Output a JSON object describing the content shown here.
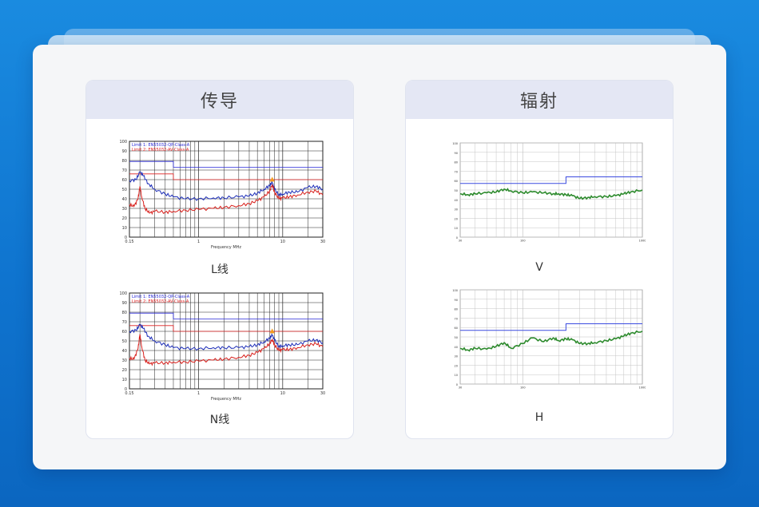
{
  "panels": {
    "conducted": {
      "title": "传导"
    },
    "radiated": {
      "title": "辐射"
    }
  },
  "captions": {
    "L": "L线",
    "N": "N线",
    "V": "V",
    "H": "H"
  },
  "colors": {
    "limit_qp": "#2a2ad8",
    "limit_av": "#e02020",
    "trace_qp": "#1c2db8",
    "trace_av": "#d8201c",
    "radiated_limit": "#3b4be0",
    "radiated_trace": "#2e8b2e",
    "marker": "#f59b1c"
  },
  "chart_data": [
    {
      "id": "L",
      "type": "line",
      "xscale": "log",
      "xlim": [
        0.15,
        30
      ],
      "ylim": [
        0,
        100
      ],
      "yticks": [
        0,
        10,
        20,
        30,
        40,
        50,
        60,
        70,
        80,
        90,
        100
      ],
      "xticks": [
        0.15,
        1,
        10,
        30
      ],
      "xlabel": "Frequency MHz",
      "legend": [
        "Limit 1: EN55032-QP-Class-A",
        "Limit 2: EN55032-AV-Class-A"
      ],
      "series": [
        {
          "name": "Limit 1: EN55032-QP-Class-A",
          "role": "limit_qp",
          "x": [
            0.15,
            0.5,
            0.5,
            30
          ],
          "y": [
            79,
            79,
            73,
            73
          ]
        },
        {
          "name": "Limit 2: EN55032-AV-Class-A",
          "role": "limit_av",
          "x": [
            0.15,
            0.5,
            0.5,
            30
          ],
          "y": [
            66,
            66,
            60,
            60
          ]
        },
        {
          "role": "trace_qp",
          "x": [
            0.15,
            0.18,
            0.2,
            0.22,
            0.25,
            0.3,
            0.4,
            0.5,
            0.7,
            1,
            1.5,
            2,
            3,
            4,
            5,
            6,
            7,
            7.5,
            8,
            9,
            10,
            12,
            15,
            20,
            25,
            30
          ],
          "y": [
            59,
            60,
            68,
            64,
            56,
            50,
            45,
            42,
            40,
            40,
            41,
            41,
            42,
            43,
            46,
            50,
            54,
            57,
            50,
            44,
            45,
            47,
            47,
            52,
            53,
            50
          ]
        },
        {
          "role": "trace_av",
          "x": [
            0.15,
            0.17,
            0.19,
            0.2,
            0.21,
            0.23,
            0.26,
            0.3,
            0.4,
            0.5,
            0.7,
            1,
            1.5,
            2,
            3,
            4,
            5,
            6,
            7,
            7.5,
            8,
            9,
            10,
            12,
            15,
            20,
            25,
            30
          ],
          "y": [
            34,
            32,
            40,
            53,
            42,
            30,
            25,
            27,
            26,
            27,
            28,
            29,
            30,
            31,
            33,
            35,
            38,
            42,
            48,
            55,
            47,
            40,
            41,
            42,
            44,
            47,
            48,
            44
          ]
        }
      ]
    },
    {
      "id": "N",
      "type": "line",
      "xscale": "log",
      "xlim": [
        0.15,
        30
      ],
      "ylim": [
        0,
        100
      ],
      "yticks": [
        0,
        10,
        20,
        30,
        40,
        50,
        60,
        70,
        80,
        90,
        100
      ],
      "xticks": [
        0.15,
        1,
        10,
        30
      ],
      "xlabel": "Frequency MHz",
      "legend": [
        "Limit 1: EN55032-QP-Class-A",
        "Limit 2: EN55032-AV-Class-A"
      ],
      "series": [
        {
          "name": "Limit 1: EN55032-QP-Class-A",
          "role": "limit_qp",
          "x": [
            0.15,
            0.5,
            0.5,
            30
          ],
          "y": [
            79,
            79,
            73,
            73
          ]
        },
        {
          "name": "Limit 2: EN55032-AV-Class-A",
          "role": "limit_av",
          "x": [
            0.15,
            0.5,
            0.5,
            30
          ],
          "y": [
            66,
            66,
            60,
            60
          ]
        },
        {
          "role": "trace_qp",
          "x": [
            0.15,
            0.18,
            0.2,
            0.22,
            0.25,
            0.3,
            0.4,
            0.5,
            0.7,
            1,
            1.5,
            2,
            3,
            4,
            5,
            6,
            7,
            7.5,
            8,
            9,
            10,
            12,
            15,
            20,
            25,
            30
          ],
          "y": [
            60,
            61,
            67,
            63,
            55,
            50,
            46,
            43,
            42,
            42,
            43,
            43,
            43,
            44,
            46,
            49,
            53,
            56,
            51,
            44,
            45,
            46,
            46,
            50,
            51,
            48
          ]
        },
        {
          "role": "trace_av",
          "x": [
            0.15,
            0.17,
            0.19,
            0.2,
            0.21,
            0.23,
            0.26,
            0.3,
            0.4,
            0.5,
            0.7,
            1,
            1.5,
            2,
            3,
            4,
            5,
            6,
            7,
            7.5,
            8,
            9,
            10,
            12,
            15,
            20,
            25,
            30
          ],
          "y": [
            32,
            31,
            42,
            57,
            44,
            30,
            26,
            27,
            27,
            28,
            28,
            29,
            30,
            31,
            33,
            35,
            38,
            42,
            47,
            52,
            46,
            40,
            41,
            41,
            43,
            46,
            47,
            44
          ]
        }
      ]
    },
    {
      "id": "V",
      "type": "line",
      "xscale": "log",
      "xlim": [
        30,
        1000
      ],
      "ylim": [
        0,
        100
      ],
      "xticks": [
        30,
        100,
        1000
      ],
      "series": [
        {
          "role": "radiated_limit",
          "x": [
            30,
            230,
            230,
            1000
          ],
          "y": [
            57,
            57,
            64,
            64
          ]
        },
        {
          "role": "radiated_trace",
          "x": [
            30,
            35,
            40,
            50,
            60,
            70,
            80,
            100,
            120,
            150,
            180,
            200,
            230,
            260,
            300,
            350,
            400,
            500,
            600,
            700,
            800,
            1000
          ],
          "y": [
            46,
            45,
            46,
            47,
            48,
            51,
            49,
            47,
            48,
            47,
            46,
            46,
            45,
            44,
            41,
            42,
            43,
            43,
            44,
            46,
            48,
            50
          ]
        }
      ]
    },
    {
      "id": "H",
      "type": "line",
      "xscale": "log",
      "xlim": [
        30,
        1000
      ],
      "ylim": [
        0,
        100
      ],
      "xticks": [
        30,
        100,
        1000
      ],
      "series": [
        {
          "role": "radiated_limit",
          "x": [
            30,
            230,
            230,
            1000
          ],
          "y": [
            57,
            57,
            64,
            64
          ]
        },
        {
          "role": "radiated_trace",
          "x": [
            30,
            35,
            40,
            50,
            60,
            70,
            80,
            100,
            120,
            150,
            180,
            200,
            230,
            260,
            300,
            350,
            400,
            500,
            600,
            700,
            800,
            1000
          ],
          "y": [
            38,
            36,
            38,
            37,
            40,
            44,
            38,
            43,
            49,
            45,
            49,
            46,
            48,
            47,
            43,
            43,
            44,
            46,
            48,
            51,
            54,
            56
          ]
        }
      ]
    }
  ]
}
